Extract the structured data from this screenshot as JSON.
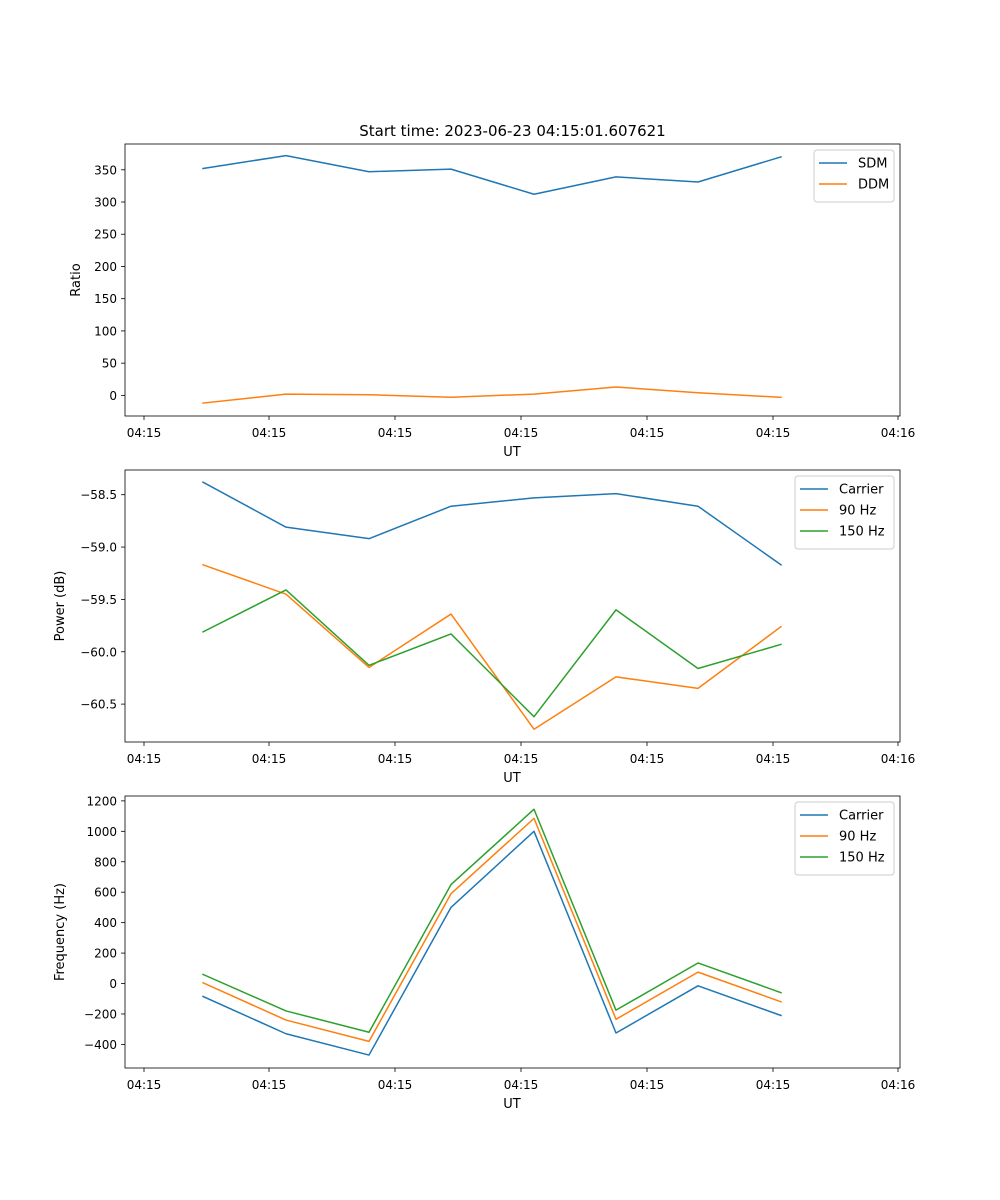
{
  "title": "Start time: 2023-06-23 04:15:01.607621",
  "colors": {
    "blue": "#1f77b4",
    "orange": "#ff7f0e",
    "green": "#2ca02c"
  },
  "chart_data": [
    {
      "type": "line",
      "title": "Start time: 2023-06-23 04:15:01.607621",
      "xlabel": "UT",
      "ylabel": "Ratio",
      "x_tick_labels": [
        "04:15",
        "04:15",
        "04:15",
        "04:15",
        "04:15",
        "04:15",
        "04:16"
      ],
      "y_ticks": [
        0,
        50,
        100,
        150,
        200,
        250,
        300,
        350
      ],
      "ylim": [
        -32,
        390
      ],
      "grid": false,
      "legend_position": "upper right",
      "series": [
        {
          "name": "SDM",
          "color": "#1f77b4",
          "values": [
            352,
            372,
            347,
            351,
            312,
            339,
            331,
            370
          ]
        },
        {
          "name": "DDM",
          "color": "#ff7f0e",
          "values": [
            -12,
            2,
            1,
            -3,
            2,
            13,
            4,
            -3
          ]
        }
      ]
    },
    {
      "type": "line",
      "xlabel": "UT",
      "ylabel": "Power (dB)",
      "x_tick_labels": [
        "04:15",
        "04:15",
        "04:15",
        "04:15",
        "04:15",
        "04:15",
        "04:16"
      ],
      "y_ticks": [
        -58.5,
        -59.0,
        -59.5,
        -60.0,
        -60.5
      ],
      "y_tick_labels": [
        "−58.5",
        "−59.0",
        "−59.5",
        "−60.0",
        "−60.5"
      ],
      "ylim": [
        -60.862,
        -58.264
      ],
      "grid": false,
      "legend_position": "upper right",
      "series": [
        {
          "name": "Carrier",
          "color": "#1f77b4",
          "values": [
            -58.38,
            -58.81,
            -58.92,
            -58.61,
            -58.53,
            -58.49,
            -58.61,
            -59.17
          ]
        },
        {
          "name": "90 Hz",
          "color": "#ff7f0e",
          "values": [
            -59.17,
            -59.45,
            -60.15,
            -59.64,
            -60.74,
            -60.24,
            -60.35,
            -59.76
          ]
        },
        {
          "name": "150 Hz",
          "color": "#2ca02c",
          "values": [
            -59.81,
            -59.41,
            -60.13,
            -59.83,
            -60.62,
            -59.6,
            -60.16,
            -59.93
          ]
        }
      ]
    },
    {
      "type": "line",
      "xlabel": "UT",
      "ylabel": "Frequency (Hz)",
      "x_tick_labels": [
        "04:15",
        "04:15",
        "04:15",
        "04:15",
        "04:15",
        "04:15",
        "04:16"
      ],
      "y_ticks": [
        -400,
        -200,
        0,
        200,
        400,
        600,
        800,
        1000,
        1200
      ],
      "y_tick_labels": [
        "−400",
        "−200",
        "0",
        "200",
        "400",
        "600",
        "800",
        "1000",
        "1200"
      ],
      "ylim": [
        -555,
        1232
      ],
      "grid": false,
      "legend_position": "upper right",
      "series": [
        {
          "name": "Carrier",
          "color": "#1f77b4",
          "values": [
            -85,
            -330,
            -470,
            500,
            1000,
            -325,
            -15,
            -210
          ]
        },
        {
          "name": "90 Hz",
          "color": "#ff7f0e",
          "values": [
            5,
            -240,
            -380,
            590,
            1085,
            -235,
            75,
            -120
          ]
        },
        {
          "name": "150 Hz",
          "color": "#2ca02c",
          "values": [
            60,
            -180,
            -320,
            650,
            1145,
            -175,
            135,
            -60
          ]
        }
      ]
    }
  ]
}
